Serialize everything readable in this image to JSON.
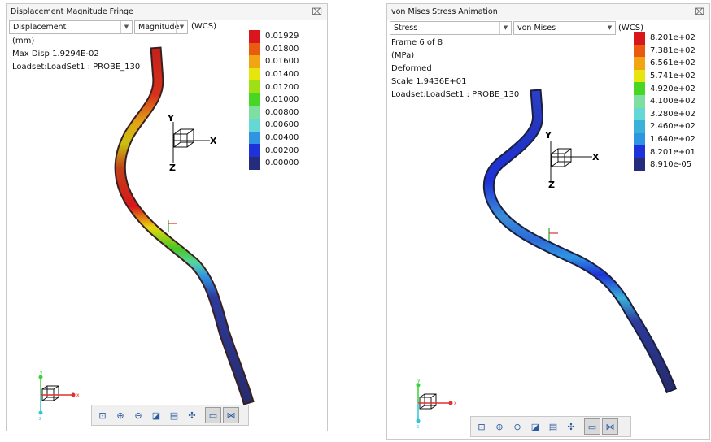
{
  "left_window": {
    "title": "Displacement Magnitude Fringe",
    "quantity": "Displacement",
    "component": "Magnitude",
    "coord": "(WCS)",
    "info": [
      "(mm)",
      "Max Disp  1.9294E-02",
      "Loadset:LoadSet1 :  PROBE_130"
    ],
    "legend": [
      {
        "label": "0.01929",
        "color": "#d8161b"
      },
      {
        "label": "0.01800",
        "color": "#ea5b12"
      },
      {
        "label": "0.01600",
        "color": "#f2a512"
      },
      {
        "label": "0.01400",
        "color": "#e6e60e"
      },
      {
        "label": "0.01200",
        "color": "#9ee014"
      },
      {
        "label": "0.01000",
        "color": "#47d623"
      },
      {
        "label": "0.00800",
        "color": "#7fdfa0"
      },
      {
        "label": "0.00600",
        "color": "#65d8d6"
      },
      {
        "label": "0.00400",
        "color": "#2f95e3"
      },
      {
        "label": "0.00200",
        "color": "#1f31d8"
      },
      {
        "label": "0.00000",
        "color": "#262c7c"
      }
    ]
  },
  "right_window": {
    "title": "von Mises Stress Animation",
    "quantity": "Stress",
    "component": "von Mises",
    "coord": "(WCS)",
    "info": [
      "Frame 6 of 8",
      "(MPa)",
      "Deformed",
      "Scale  1.9436E+01",
      "Loadset:LoadSet1 :  PROBE_130"
    ],
    "legend": [
      {
        "label": "8.201e+02",
        "color": "#d8161b"
      },
      {
        "label": "7.381e+02",
        "color": "#ea5b12"
      },
      {
        "label": "6.561e+02",
        "color": "#f2a512"
      },
      {
        "label": "5.741e+02",
        "color": "#e6e60e"
      },
      {
        "label": "4.920e+02",
        "color": "#47d623"
      },
      {
        "label": "4.100e+02",
        "color": "#7fdfa0"
      },
      {
        "label": "3.280e+02",
        "color": "#65d8d6"
      },
      {
        "label": "2.460e+02",
        "color": "#3ab1d8"
      },
      {
        "label": "1.640e+02",
        "color": "#2f95e3"
      },
      {
        "label": "8.201e+01",
        "color": "#1f31d8"
      },
      {
        "label": "8.910e-05",
        "color": "#262c7c"
      }
    ]
  },
  "axes_labels": {
    "x": "X",
    "y": "Y",
    "z": "Z",
    "mini_x": "x",
    "mini_y": "y",
    "mini_z": "z"
  },
  "close_glyph": "⌧",
  "toolbar_icons": [
    "zoom-fit-icon",
    "zoom-in-icon",
    "zoom-out-icon",
    "shaded-view-icon",
    "saved-views-icon",
    "spin-center-icon",
    "orientation-icon",
    "repaint-icon"
  ]
}
